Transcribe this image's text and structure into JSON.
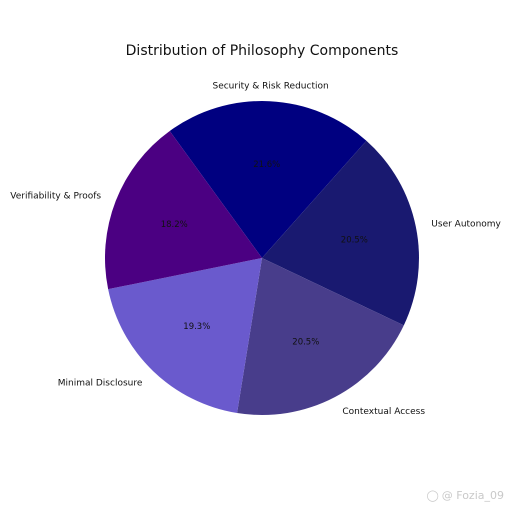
{
  "chart_data": {
    "type": "pie",
    "title": "Distribution of Philosophy Components",
    "categories": [
      "Security & Risk Reduction",
      "User Autonomy",
      "Contextual Access",
      "Minimal Disclosure",
      "Verifiability & Proofs"
    ],
    "values": [
      21.6,
      20.5,
      20.5,
      19.3,
      18.2
    ],
    "value_labels": [
      "21.6%",
      "20.5%",
      "20.5%",
      "19.3%",
      "18.2%"
    ],
    "colors": [
      "#000080",
      "#191970",
      "#483D8B",
      "#6A5ACD",
      "#4B0082"
    ],
    "start_angle_deg": 126,
    "direction": "clockwise"
  },
  "watermark": {
    "icon": "weibo-icon",
    "text": "@ Fozia_09"
  }
}
